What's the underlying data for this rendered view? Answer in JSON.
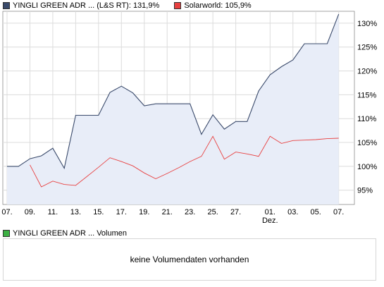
{
  "legend": {
    "series1_label": "YINGLI GREEN ADR ... (L&S RT): 131,9%",
    "series2_label": "Solarworld: 105,9%",
    "volume_label": "YINGLI GREEN ADR ... Volumen"
  },
  "volume_panel": {
    "message": "keine Volumendaten vorhanden"
  },
  "colors": {
    "series1_line": "#3a4a6b",
    "series1_fill": "#e8edf8",
    "series2_line": "#e84040",
    "volume_swatch": "#3cb043",
    "grid": "#dcdcdc",
    "axis": "#666666"
  },
  "chart_data": {
    "type": "line",
    "x": [
      "07.",
      "08.",
      "09.",
      "10.",
      "11.",
      "12.",
      "13.",
      "14.",
      "15.",
      "16.",
      "17.",
      "18.",
      "19.",
      "20.",
      "21.",
      "22.",
      "23.",
      "24.",
      "25.",
      "26.",
      "27.",
      "28.",
      "29.",
      "30.",
      "01.",
      "02.",
      "03.",
      "04.",
      "05.",
      "06.",
      "07."
    ],
    "x_tick_labels": [
      "07.",
      "09.",
      "11.",
      "13.",
      "15.",
      "17.",
      "19.",
      "21.",
      "23.",
      "25.",
      "27.",
      "01.",
      "03.",
      "05.",
      "07."
    ],
    "x_tick_indices": [
      0,
      2,
      4,
      6,
      8,
      10,
      12,
      14,
      16,
      18,
      20,
      23,
      25,
      27,
      29
    ],
    "x_secondary_label": "Dez.",
    "x_secondary_index": 23,
    "ylim": [
      92,
      132.5
    ],
    "y_ticks": [
      95,
      100,
      105,
      110,
      115,
      120,
      125,
      130
    ],
    "y_tick_labels": [
      "95%",
      "100%",
      "105%",
      "110%",
      "115%",
      "120%",
      "125%",
      "130%"
    ],
    "grid": true,
    "series": [
      {
        "name": "YINGLI GREEN ADR ... (L&S RT)",
        "fill": true,
        "values": [
          [
            0,
            100.0
          ],
          [
            1,
            100.0
          ],
          [
            2,
            101.6
          ],
          [
            3,
            102.2
          ],
          [
            4,
            103.8
          ],
          [
            5,
            99.6
          ],
          [
            6,
            110.7
          ],
          [
            7,
            110.7
          ],
          [
            8,
            110.7
          ],
          [
            9,
            115.5
          ],
          [
            10,
            116.8
          ],
          [
            11,
            115.4
          ],
          [
            12,
            112.7
          ],
          [
            13,
            113.1
          ],
          [
            14,
            113.1
          ],
          [
            15,
            113.1
          ],
          [
            16,
            113.1
          ],
          [
            17,
            106.7
          ],
          [
            18,
            110.8
          ],
          [
            19,
            107.8
          ],
          [
            20,
            109.4
          ],
          [
            21,
            109.4
          ],
          [
            22,
            115.8
          ],
          [
            23,
            119.2
          ],
          [
            24,
            120.9
          ],
          [
            25,
            122.3
          ],
          [
            26,
            125.7
          ],
          [
            27,
            125.7
          ],
          [
            28,
            125.7
          ],
          [
            29,
            131.9
          ]
        ]
      },
      {
        "name": "Solarworld",
        "fill": false,
        "values": [
          [
            2,
            100.3
          ],
          [
            3,
            95.7
          ],
          [
            4,
            96.9
          ],
          [
            5,
            96.2
          ],
          [
            6,
            96.0
          ],
          [
            7,
            97.9
          ],
          [
            8,
            99.8
          ],
          [
            9,
            101.8
          ],
          [
            10,
            101.0
          ],
          [
            11,
            100.1
          ],
          [
            12,
            98.6
          ],
          [
            13,
            97.4
          ],
          [
            14,
            98.5
          ],
          [
            15,
            99.7
          ],
          [
            16,
            101.0
          ],
          [
            17,
            102.1
          ],
          [
            18,
            106.3
          ],
          [
            19,
            101.5
          ],
          [
            20,
            103.0
          ],
          [
            21,
            102.6
          ],
          [
            22,
            102.1
          ],
          [
            23,
            106.3
          ],
          [
            24,
            104.8
          ],
          [
            25,
            105.4
          ],
          [
            26,
            105.5
          ],
          [
            27,
            105.6
          ],
          [
            28,
            105.8
          ],
          [
            29,
            105.9
          ]
        ]
      }
    ]
  }
}
